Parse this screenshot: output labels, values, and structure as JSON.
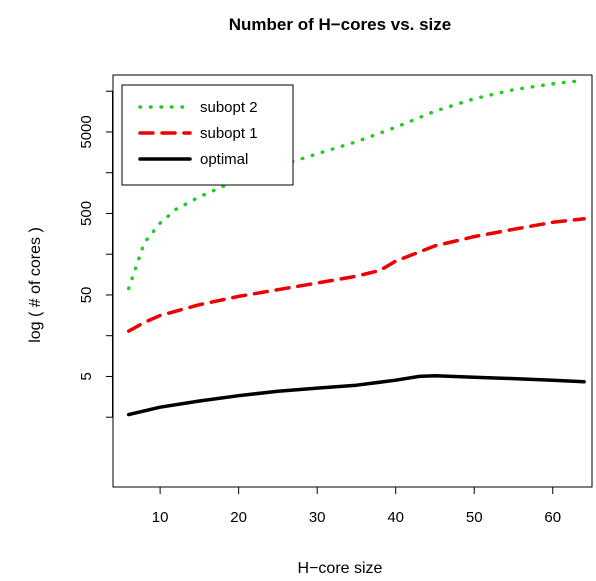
{
  "chart_data": {
    "type": "line",
    "title": "Number of H−cores vs. size",
    "xlabel": "H−core size",
    "ylabel": "log ( # of cores )",
    "xlim": [
      4,
      65
    ],
    "ylim": [
      0.22,
      25000
    ],
    "log_y": true,
    "x_ticks": [
      10,
      20,
      30,
      40,
      50,
      60
    ],
    "y_ticks": [
      5,
      50,
      500,
      5000
    ],
    "legend_position": "top-left",
    "grid": false,
    "series": [
      {
        "name": "subopt 2",
        "color": "#22cc22",
        "style": "dotted",
        "x": [
          6,
          8,
          10,
          12,
          15,
          20,
          25,
          30,
          35,
          40,
          45,
          50,
          55,
          60,
          64
        ],
        "y": [
          60,
          220,
          380,
          560,
          800,
          1300,
          1900,
          2700,
          3800,
          5700,
          9000,
          12800,
          16500,
          19500,
          21500
        ]
      },
      {
        "name": "subopt 1",
        "color": "#ee0000",
        "style": "dashed",
        "x": [
          6,
          8,
          10,
          15,
          20,
          25,
          30,
          35,
          38,
          40,
          45,
          50,
          55,
          60,
          64
        ],
        "y": [
          18,
          23,
          28,
          38,
          48,
          58,
          70,
          85,
          100,
          130,
          200,
          260,
          320,
          390,
          430
        ]
      },
      {
        "name": "optimal",
        "color": "#000000",
        "style": "solid",
        "x": [
          6,
          10,
          15,
          20,
          25,
          30,
          35,
          40,
          43,
          45,
          50,
          55,
          60,
          64
        ],
        "y": [
          1.7,
          2.1,
          2.5,
          2.9,
          3.3,
          3.6,
          3.9,
          4.5,
          5.0,
          5.1,
          4.9,
          4.7,
          4.5,
          4.3
        ]
      }
    ]
  }
}
